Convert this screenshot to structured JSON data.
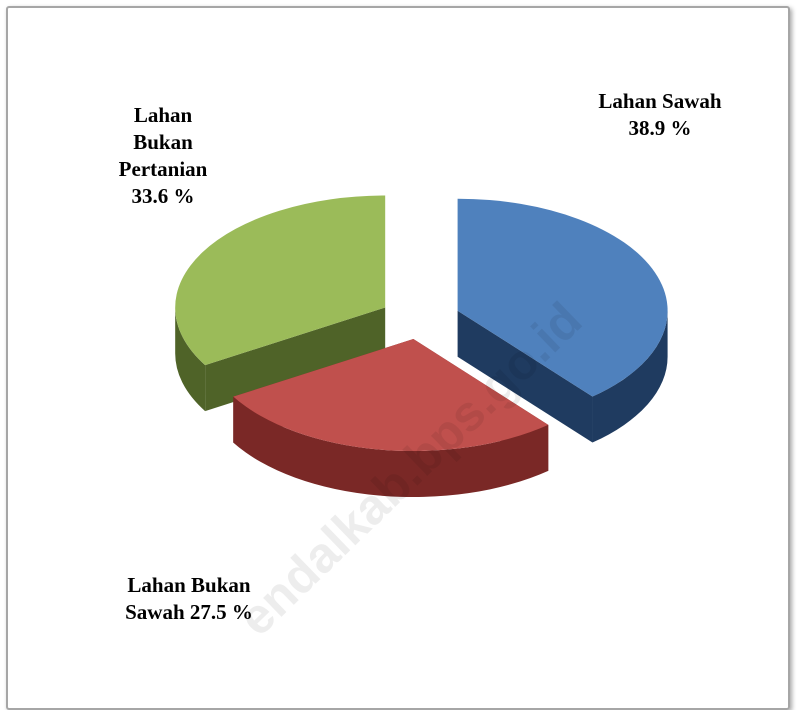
{
  "chart_data": {
    "type": "pie3d",
    "categories": [
      "Lahan Sawah",
      "Lahan Bukan Sawah",
      "Lahan Bukan Pertanian"
    ],
    "values": [
      38.9,
      27.5,
      33.6
    ],
    "value_labels": [
      "38.9 %",
      "27.5 %",
      "33.6 %"
    ],
    "colors": [
      "#4f81bd",
      "#c0504d",
      "#9bbb59"
    ],
    "side_colors": [
      "#1f3b60",
      "#7a2826",
      "#4f6328"
    ],
    "watermark": "endalkab.bps.go.id"
  }
}
